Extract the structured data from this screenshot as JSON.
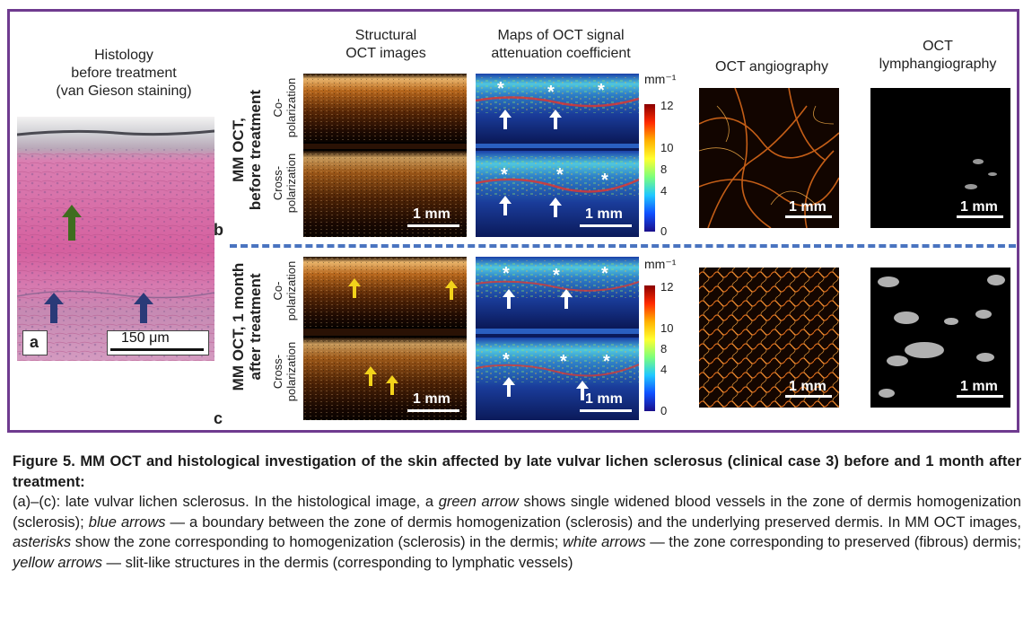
{
  "headers": {
    "histology": "Histology\nbefore treatment\n(van Gieson staining)",
    "structural": "Structural\nOCT images",
    "attenuation": "Maps of OCT signal\nattenuation coefficient",
    "angiography": "OCT angiography",
    "lymph": "OCT\nlymphangiography"
  },
  "row_titles": {
    "b": "MM OCT,\nbefore treatment",
    "c": "MM OCT, 1 month\nafter treatment"
  },
  "pol_labels": {
    "co": "Co-\npolarization",
    "cross": "Cross-\npolarization"
  },
  "panel_letters": {
    "a": "a",
    "b": "b",
    "c": "c"
  },
  "scale_labels": {
    "hist": "150 μm",
    "mm": "1 mm"
  },
  "colorbar": {
    "unit": "mm⁻¹",
    "ticks": [
      "12",
      "10",
      "8",
      "4",
      "0"
    ]
  },
  "star_symbol": "*",
  "caption": {
    "title": "Figure 5. MM OCT and histological investigation of the skin affected by late vulvar lichen sclerosus (clinical case 3) before and 1 month after treatment:",
    "p1": "(a)–(c): late vulvar lichen sclerosus. In the histological image, a ",
    "p1_i1": "green arrow",
    "p1_2": " shows single widened blood vessels in the zone of dermis homogenization (sclerosis); ",
    "p1_i2": "blue arrows",
    "p1_3": " — a boundary between the zone of dermis homogenization (sclerosis) and the underlying preserved dermis. In MM OCT images, ",
    "p1_i3": "asterisks",
    "p1_4": " show the zone corresponding to homogenization (sclerosis) in the dermis; ",
    "p1_i4": "white arrows",
    "p1_5": " — the zone corresponding to preserved (fibrous) dermis; ",
    "p1_i5": "yellow arrows",
    "p1_6": " — slit-like structures in the dermis (corresponding to lymphatic vessels)"
  },
  "colors": {
    "frame": "#6f3b8f",
    "divider": "#4a74c0",
    "histo_pink": "#d1609a",
    "green_arrow": "#3f6d1f",
    "blue_arrow": "#2a3a78",
    "yellow_arrow": "#f2d31b"
  }
}
